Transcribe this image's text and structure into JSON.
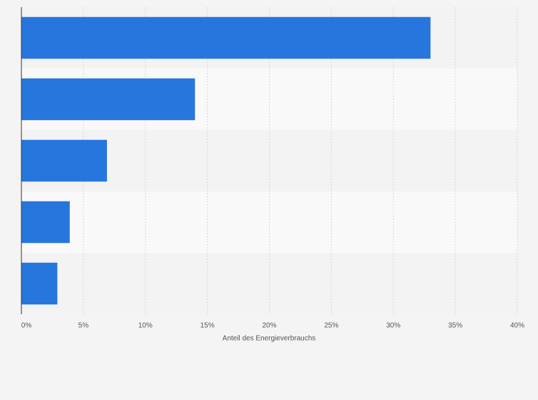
{
  "chart_data": {
    "type": "hbar",
    "xlabel": "Anteil des Energieverbrauchs",
    "categories": [
      null,
      null,
      null,
      null,
      null
    ],
    "values": [
      33,
      14,
      6.9,
      3.9,
      2.9
    ],
    "color": "#2776dd",
    "xlim": [
      0,
      40
    ],
    "xticks": [
      {
        "value": 0,
        "label": "0%"
      },
      {
        "value": 5,
        "label": "5%"
      },
      {
        "value": 10,
        "label": "10%"
      },
      {
        "value": 15,
        "label": "15%"
      },
      {
        "value": 20,
        "label": "20%"
      },
      {
        "value": 25,
        "label": "25%"
      },
      {
        "value": 30,
        "label": "30%"
      },
      {
        "value": 35,
        "label": "35%"
      },
      {
        "value": 40,
        "label": "40%"
      }
    ],
    "grid": true
  }
}
